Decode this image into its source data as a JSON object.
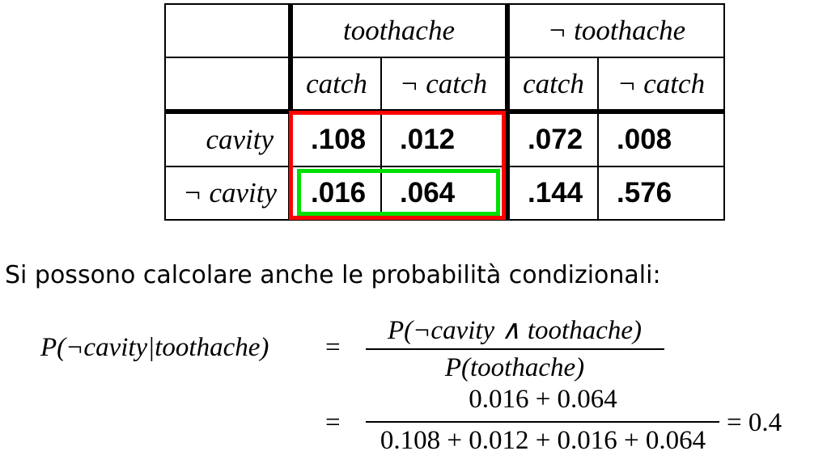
{
  "table": {
    "col_groups": [
      "toothache",
      "¬ toothache"
    ],
    "sub_headers": [
      "catch",
      "¬ catch",
      "catch",
      "¬ catch"
    ],
    "rows": [
      {
        "label": "cavity",
        "values": [
          ".108",
          ".012",
          ".072",
          ".008"
        ]
      },
      {
        "label": "¬ cavity",
        "values": [
          ".016",
          ".064",
          ".144",
          ".576"
        ]
      }
    ],
    "highlight_colors": {
      "toothache_region": "#ff0000",
      "not_cavity_toothache": "#00e000"
    }
  },
  "text": {
    "sentence": "Si possono calcolare anche le probabilità condizionali:"
  },
  "formula": {
    "lhs": "P(¬cavity|toothache)",
    "eq": "=",
    "num1": "P(¬cavity ∧ toothache)",
    "den1": "P(toothache)",
    "num2": "0.016 + 0.064",
    "den2": "0.108 + 0.012 + 0.016 + 0.064",
    "result": "= 0.4"
  }
}
